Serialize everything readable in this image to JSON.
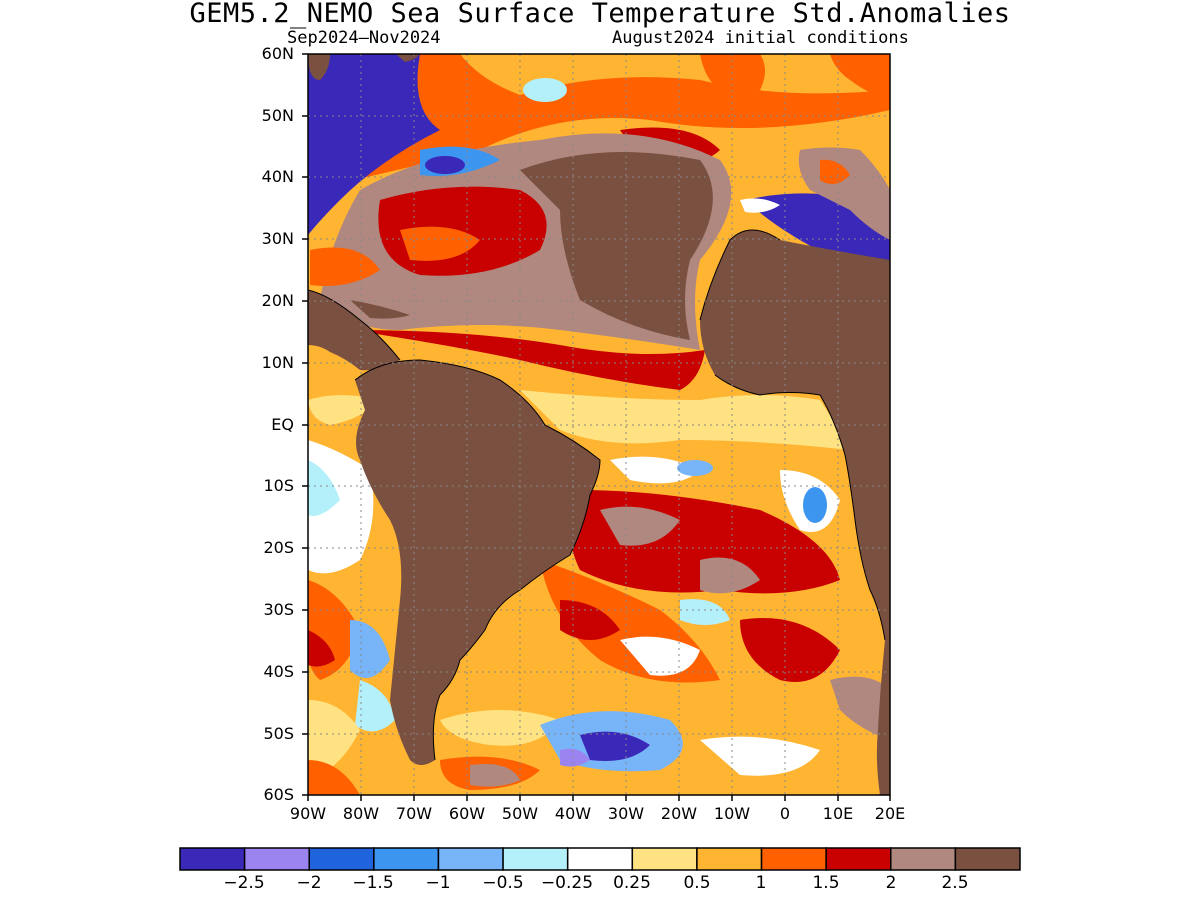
{
  "title": "GEM5.2_NEMO Sea Surface Temperature Std.Anomalies",
  "subtitle_left": "Sep2024–Nov2024",
  "subtitle_right": "August2024 initial conditions",
  "map": {
    "lon_range": [
      -90,
      20
    ],
    "lat_range": [
      -60,
      60
    ],
    "lat_labels": [
      "60N",
      "50N",
      "40N",
      "30N",
      "20N",
      "10N",
      "EQ",
      "10S",
      "20S",
      "30S",
      "40S",
      "50S",
      "60S"
    ],
    "lon_labels": [
      "90W",
      "80W",
      "70W",
      "60W",
      "50W",
      "40W",
      "30W",
      "20W",
      "10W",
      "0",
      "10E",
      "20E"
    ],
    "land_color": "#7a5040",
    "masked_color": "#3a28b8"
  },
  "colorbar": {
    "colors": [
      "#3a28b8",
      "#9b84f0",
      "#1f64dc",
      "#3c96f0",
      "#78b4f8",
      "#b4f0fa",
      "#ffffff",
      "#ffe282",
      "#ffb432",
      "#ff6000",
      "#c80000",
      "#b08880",
      "#7a5040"
    ],
    "labels": [
      "−2.5",
      "−2",
      "−1.5",
      "−1",
      "−0.5",
      "−0.25",
      "0.25",
      "0.5",
      "1",
      "1.5",
      "2",
      "2.5"
    ]
  }
}
